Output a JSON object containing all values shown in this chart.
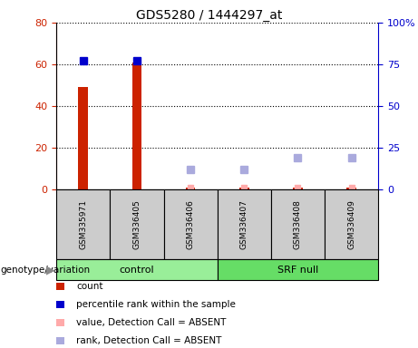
{
  "title": "GDS5280 / 1444297_at",
  "samples": [
    "GSM335971",
    "GSM336405",
    "GSM336406",
    "GSM336407",
    "GSM336408",
    "GSM336409"
  ],
  "count_values": [
    49,
    61,
    1,
    1,
    1,
    1
  ],
  "count_color": "#cc2200",
  "percentile_rank_present": [
    77,
    77,
    null,
    null,
    null,
    null
  ],
  "value_absent": [
    null,
    null,
    1,
    1,
    1,
    1
  ],
  "rank_absent": [
    null,
    null,
    12,
    12,
    19,
    19
  ],
  "rank_color_present": "#0000cc",
  "value_absent_color": "#ffaaaa",
  "rank_absent_color": "#aaaadd",
  "ylim_left": [
    0,
    80
  ],
  "ylim_right": [
    0,
    100
  ],
  "yticks_left": [
    0,
    20,
    40,
    60,
    80
  ],
  "yticks_right": [
    0,
    25,
    50,
    75,
    100
  ],
  "ytick_labels_right": [
    "0",
    "25",
    "50",
    "75",
    "100%"
  ],
  "left_axis_color": "#cc2200",
  "right_axis_color": "#0000cc",
  "sample_box_color": "#cccccc",
  "groups_def": [
    {
      "name": "control",
      "indices": [
        0,
        1,
        2
      ],
      "color": "#99ee99"
    },
    {
      "name": "SRF null",
      "indices": [
        3,
        4,
        5
      ],
      "color": "#66dd66"
    }
  ],
  "legend_items": [
    {
      "label": "count",
      "color": "#cc2200"
    },
    {
      "label": "percentile rank within the sample",
      "color": "#0000cc"
    },
    {
      "label": "value, Detection Call = ABSENT",
      "color": "#ffaaaa"
    },
    {
      "label": "rank, Detection Call = ABSENT",
      "color": "#aaaadd"
    }
  ],
  "genotype_label": "genotype/variation"
}
